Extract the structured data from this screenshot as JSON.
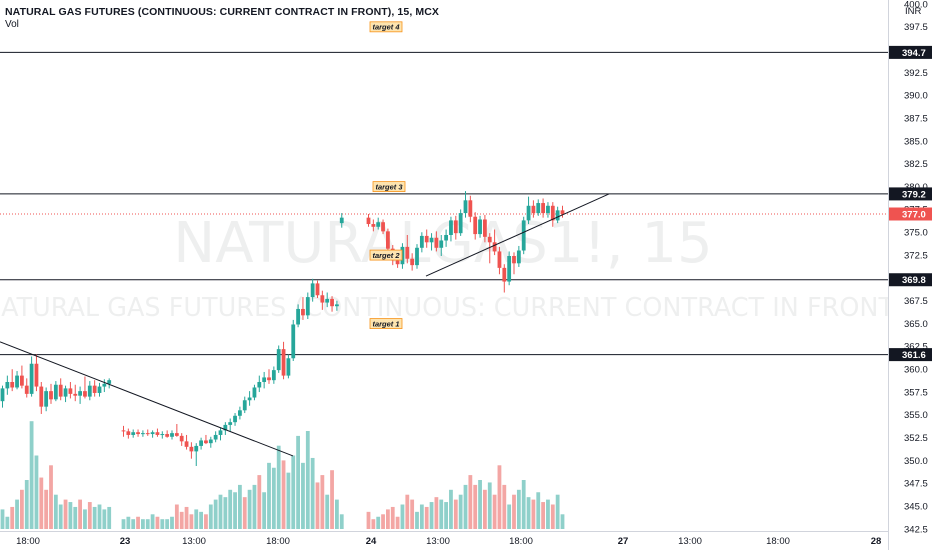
{
  "header": {
    "symbol_title": "NATURAL GAS FUTURES (CONTINUOUS: CURRENT CONTRACT IN FRONT), 15, MCX",
    "volume_label": "Vol",
    "currency": "INR"
  },
  "watermark": {
    "line1": "NATURALGAS1!, 15",
    "line2": "NATURAL GAS FUTURES (CONTINUOUS: CURRENT CONTRACT IN FRONT)"
  },
  "colors": {
    "up": "#26a69a",
    "down": "#ef5350",
    "vol_up": "#8fd0ca",
    "vol_down": "#f3a6a4",
    "level_line": "#131722",
    "target_bg": "#fde4b0",
    "target_border": "#f7931a",
    "price_tag": "#ef5350",
    "dotted_price": "#ef5350"
  },
  "chart_data": {
    "type": "candlestick",
    "timeframe": "15",
    "exchange": "MCX",
    "currency": "INR",
    "ylim": [
      342.5,
      400.0
    ],
    "y_ticks": [
      342.5,
      345.0,
      347.5,
      350.0,
      352.5,
      355.0,
      357.5,
      360.0,
      362.5,
      365.0,
      367.5,
      370.0,
      372.5,
      375.0,
      377.5,
      380.0,
      382.5,
      385.0,
      387.5,
      390.0,
      392.5,
      395.0,
      397.5,
      400.0
    ],
    "x_ticks": [
      "18:00",
      "23",
      "13:00",
      "18:00",
      "24",
      "13:00",
      "18:00",
      "27",
      "13:00",
      "18:00",
      "28"
    ],
    "horizontal_levels": [
      394.7,
      379.2,
      369.8,
      361.6
    ],
    "current_price": 377.0,
    "price_labels": [
      "394.7",
      "379.2",
      "377.0",
      "369.8",
      "361.6"
    ],
    "annotations": [
      {
        "text": "target 4",
        "price": 397.5
      },
      {
        "text": "target 3",
        "price": 380.0
      },
      {
        "text": "target 2",
        "price": 372.5
      },
      {
        "text": "target 1",
        "price": 365.0
      }
    ],
    "trendlines": [
      {
        "name": "falling",
        "from_price": 363.0,
        "to_price": 350.5
      },
      {
        "name": "rising",
        "from_price": 370.2,
        "to_price": 379.2
      }
    ],
    "candles": [
      [
        356.5,
        358.2,
        355.8,
        357.9
      ],
      [
        357.9,
        359.3,
        357.2,
        358.6
      ],
      [
        358.6,
        360.0,
        357.6,
        358.0
      ],
      [
        358.0,
        359.8,
        357.8,
        359.3
      ],
      [
        359.3,
        360.4,
        357.9,
        358.2
      ],
      [
        358.2,
        359.0,
        356.9,
        357.3
      ],
      [
        357.3,
        361.4,
        357.0,
        360.6
      ],
      [
        360.6,
        361.6,
        357.6,
        358.1
      ],
      [
        358.1,
        358.6,
        355.1,
        355.9
      ],
      [
        355.9,
        358.0,
        355.4,
        357.6
      ],
      [
        357.6,
        358.4,
        356.2,
        356.7
      ],
      [
        356.7,
        358.7,
        356.5,
        358.3
      ],
      [
        358.3,
        359.0,
        356.6,
        357.0
      ],
      [
        357.0,
        358.2,
        356.4,
        357.9
      ],
      [
        357.9,
        358.6,
        356.8,
        357.3
      ],
      [
        357.3,
        358.3,
        356.5,
        357.1
      ],
      [
        357.1,
        358.1,
        356.2,
        357.6
      ],
      [
        357.6,
        359.2,
        356.8,
        357.0
      ],
      [
        357.0,
        358.7,
        356.6,
        358.2
      ],
      [
        358.2,
        358.8,
        357.0,
        357.4
      ],
      [
        357.4,
        358.5,
        357.0,
        358.1
      ],
      [
        358.1,
        358.9,
        357.5,
        358.4
      ],
      [
        358.4,
        359.0,
        357.9,
        358.8
      ],
      [
        353.3,
        353.8,
        352.6,
        353.2
      ],
      [
        353.2,
        353.5,
        352.4,
        352.8
      ],
      [
        352.8,
        353.4,
        352.5,
        353.1
      ],
      [
        353.1,
        353.4,
        352.6,
        352.9
      ],
      [
        352.9,
        353.3,
        352.6,
        353.0
      ],
      [
        353.0,
        353.4,
        352.7,
        352.9
      ],
      [
        352.9,
        353.3,
        352.5,
        353.1
      ],
      [
        353.1,
        353.5,
        352.6,
        352.8
      ],
      [
        352.8,
        353.2,
        352.4,
        352.9
      ],
      [
        352.9,
        353.3,
        352.5,
        352.6
      ],
      [
        352.6,
        353.3,
        352.3,
        353.0
      ],
      [
        353.0,
        354.0,
        352.6,
        352.7
      ],
      [
        352.7,
        353.0,
        351.6,
        352.1
      ],
      [
        352.1,
        352.8,
        351.2,
        351.5
      ],
      [
        351.5,
        352.0,
        350.2,
        351.0
      ],
      [
        351.0,
        351.9,
        349.4,
        351.6
      ],
      [
        351.6,
        352.5,
        351.2,
        352.2
      ],
      [
        352.2,
        352.8,
        351.8,
        351.9
      ],
      [
        351.9,
        352.6,
        351.4,
        352.3
      ],
      [
        352.3,
        353.2,
        352.0,
        352.8
      ],
      [
        352.8,
        353.6,
        352.2,
        353.3
      ],
      [
        353.3,
        354.2,
        352.8,
        353.9
      ],
      [
        353.9,
        354.6,
        353.2,
        354.2
      ],
      [
        354.2,
        355.2,
        353.8,
        354.9
      ],
      [
        354.9,
        355.9,
        354.5,
        355.5
      ],
      [
        355.5,
        357.0,
        355.2,
        356.6
      ],
      [
        356.6,
        357.6,
        356.0,
        356.9
      ],
      [
        356.9,
        358.3,
        356.6,
        358.0
      ],
      [
        358.0,
        359.3,
        357.5,
        358.6
      ],
      [
        358.6,
        359.7,
        357.9,
        359.1
      ],
      [
        359.1,
        360.0,
        358.4,
        358.8
      ],
      [
        358.8,
        360.3,
        358.4,
        359.9
      ],
      [
        359.9,
        362.6,
        359.6,
        362.2
      ],
      [
        362.2,
        363.0,
        358.9,
        359.3
      ],
      [
        359.3,
        361.6,
        359.0,
        361.2
      ],
      [
        361.2,
        365.4,
        360.9,
        364.9
      ],
      [
        364.9,
        367.1,
        364.6,
        366.6
      ],
      [
        366.6,
        367.9,
        365.4,
        365.9
      ],
      [
        365.9,
        368.4,
        365.5,
        367.9
      ],
      [
        367.9,
        369.9,
        367.4,
        369.4
      ],
      [
        369.4,
        369.7,
        367.8,
        368.1
      ],
      [
        368.1,
        368.6,
        366.5,
        367.3
      ],
      [
        367.3,
        368.4,
        366.8,
        367.7
      ],
      [
        367.7,
        368.0,
        366.3,
        366.9
      ],
      [
        366.9,
        367.5,
        366.4,
        367.1
      ],
      [
        376.0,
        377.1,
        375.5,
        376.6
      ],
      [
        376.6,
        377.0,
        375.6,
        375.9
      ],
      [
        375.9,
        376.4,
        375.1,
        375.6
      ],
      [
        375.6,
        376.6,
        375.3,
        376.1
      ],
      [
        376.1,
        376.4,
        374.8,
        375.1
      ],
      [
        375.1,
        375.4,
        372.7,
        373.2
      ],
      [
        373.2,
        373.6,
        371.4,
        371.9
      ],
      [
        371.9,
        372.4,
        371.1,
        371.5
      ],
      [
        371.5,
        373.8,
        371.0,
        373.4
      ],
      [
        373.4,
        374.7,
        371.6,
        372.1
      ],
      [
        372.1,
        372.7,
        370.8,
        371.4
      ],
      [
        371.4,
        373.7,
        371.0,
        373.3
      ],
      [
        373.3,
        375.0,
        372.8,
        374.6
      ],
      [
        374.6,
        375.3,
        373.3,
        373.9
      ],
      [
        373.9,
        374.9,
        373.0,
        374.4
      ],
      [
        374.4,
        375.1,
        372.9,
        373.3
      ],
      [
        373.3,
        374.7,
        372.4,
        374.1
      ],
      [
        374.1,
        375.3,
        373.4,
        374.7
      ],
      [
        374.7,
        376.7,
        374.0,
        376.3
      ],
      [
        376.3,
        376.8,
        374.2,
        374.9
      ],
      [
        374.9,
        377.5,
        374.6,
        377.1
      ],
      [
        377.1,
        379.5,
        376.6,
        378.5
      ],
      [
        378.5,
        379.0,
        376.1,
        376.7
      ],
      [
        376.7,
        377.2,
        374.2,
        374.8
      ],
      [
        374.8,
        376.8,
        374.4,
        376.4
      ],
      [
        376.4,
        376.9,
        373.9,
        374.5
      ],
      [
        374.5,
        374.9,
        371.6,
        373.9
      ],
      [
        373.9,
        375.3,
        372.5,
        372.9
      ],
      [
        372.9,
        373.4,
        370.4,
        371.1
      ],
      [
        371.1,
        371.5,
        368.4,
        369.6
      ],
      [
        369.6,
        372.9,
        369.2,
        372.4
      ],
      [
        372.4,
        372.8,
        370.4,
        371.6
      ],
      [
        371.6,
        373.5,
        371.2,
        373.0
      ],
      [
        373.0,
        376.7,
        372.6,
        376.3
      ],
      [
        376.3,
        378.9,
        375.9,
        377.9
      ],
      [
        377.9,
        378.5,
        376.6,
        377.1
      ],
      [
        377.1,
        378.6,
        376.8,
        378.2
      ],
      [
        378.2,
        378.7,
        376.6,
        377.1
      ],
      [
        377.1,
        378.3,
        376.6,
        377.9
      ],
      [
        377.9,
        378.3,
        375.6,
        376.3
      ],
      [
        376.3,
        377.8,
        376.0,
        377.4
      ],
      [
        377.4,
        377.9,
        376.6,
        377.0
      ]
    ],
    "volumes": [
      [
        8,
        1
      ],
      [
        5,
        1
      ],
      [
        9,
        0
      ],
      [
        12,
        1
      ],
      [
        16,
        0
      ],
      [
        20,
        1
      ],
      [
        44,
        1
      ],
      [
        30,
        1
      ],
      [
        21,
        0
      ],
      [
        16,
        0
      ],
      [
        26,
        0
      ],
      [
        14,
        1
      ],
      [
        10,
        1
      ],
      [
        12,
        0
      ],
      [
        11,
        1
      ],
      [
        9,
        1
      ],
      [
        12,
        0
      ],
      [
        8,
        1
      ],
      [
        11,
        0
      ],
      [
        9,
        1
      ],
      [
        10,
        1
      ],
      [
        8,
        1
      ],
      [
        9,
        1
      ],
      [
        4,
        1
      ],
      [
        5,
        1
      ],
      [
        4,
        1
      ],
      [
        5,
        0
      ],
      [
        4,
        1
      ],
      [
        4,
        1
      ],
      [
        6,
        1
      ],
      [
        5,
        0
      ],
      [
        4,
        1
      ],
      [
        4,
        1
      ],
      [
        5,
        1
      ],
      [
        10,
        0
      ],
      [
        7,
        0
      ],
      [
        9,
        0
      ],
      [
        6,
        0
      ],
      [
        8,
        1
      ],
      [
        7,
        1
      ],
      [
        6,
        0
      ],
      [
        10,
        1
      ],
      [
        12,
        1
      ],
      [
        14,
        1
      ],
      [
        13,
        1
      ],
      [
        16,
        1
      ],
      [
        15,
        1
      ],
      [
        18,
        1
      ],
      [
        13,
        0
      ],
      [
        16,
        1
      ],
      [
        18,
        1
      ],
      [
        22,
        0
      ],
      [
        15,
        1
      ],
      [
        27,
        1
      ],
      [
        25,
        1
      ],
      [
        34,
        1
      ],
      [
        28,
        0
      ],
      [
        23,
        1
      ],
      [
        30,
        1
      ],
      [
        38,
        1
      ],
      [
        27,
        1
      ],
      [
        40,
        1
      ],
      [
        29,
        1
      ],
      [
        19,
        0
      ],
      [
        22,
        0
      ],
      [
        14,
        1
      ],
      [
        24,
        0
      ],
      [
        12,
        1
      ],
      [
        6,
        1
      ],
      [
        7,
        0
      ],
      [
        4,
        0
      ],
      [
        5,
        1
      ],
      [
        6,
        0
      ],
      [
        8,
        0
      ],
      [
        9,
        0
      ],
      [
        5,
        0
      ],
      [
        10,
        1
      ],
      [
        14,
        0
      ],
      [
        12,
        0
      ],
      [
        7,
        1
      ],
      [
        10,
        1
      ],
      [
        9,
        0
      ],
      [
        11,
        1
      ],
      [
        13,
        0
      ],
      [
        12,
        1
      ],
      [
        11,
        1
      ],
      [
        16,
        1
      ],
      [
        12,
        0
      ],
      [
        14,
        1
      ],
      [
        18,
        1
      ],
      [
        22,
        0
      ],
      [
        18,
        0
      ],
      [
        20,
        1
      ],
      [
        16,
        0
      ],
      [
        19,
        1
      ],
      [
        14,
        0
      ],
      [
        26,
        0
      ],
      [
        18,
        0
      ],
      [
        10,
        1
      ],
      [
        14,
        0
      ],
      [
        16,
        1
      ],
      [
        20,
        1
      ],
      [
        13,
        1
      ],
      [
        12,
        0
      ],
      [
        15,
        1
      ],
      [
        11,
        0
      ],
      [
        12,
        1
      ],
      [
        10,
        0
      ],
      [
        14,
        1
      ],
      [
        6,
        1
      ]
    ]
  }
}
